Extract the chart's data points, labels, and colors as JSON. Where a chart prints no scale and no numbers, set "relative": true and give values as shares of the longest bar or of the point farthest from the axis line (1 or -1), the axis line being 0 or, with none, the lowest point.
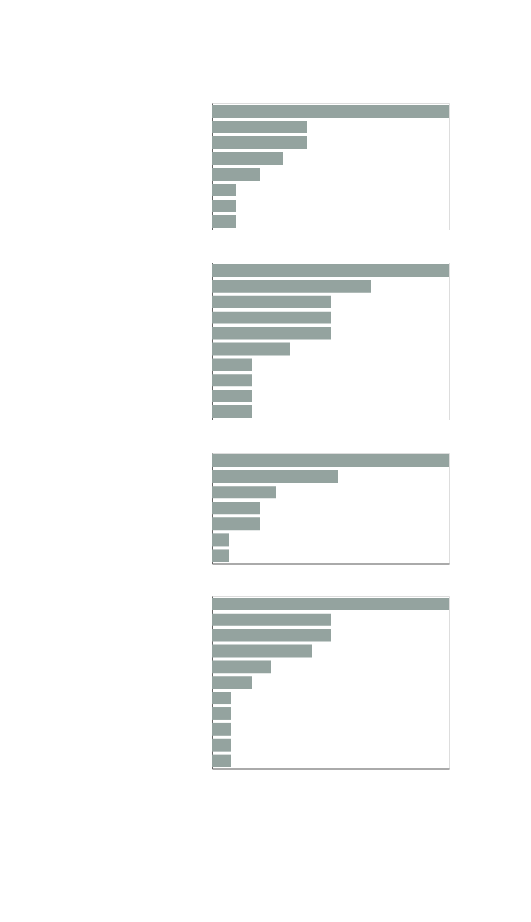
{
  "chart_data": [
    {
      "type": "bar",
      "orientation": "horizontal",
      "relative": true,
      "color": "#94a39f",
      "categories": [
        null,
        null,
        null,
        null,
        null,
        null,
        null,
        null
      ],
      "values": [
        1,
        0.4,
        0.4,
        0.3,
        0.2,
        0.1,
        0.1,
        0.1
      ]
    },
    {
      "type": "bar",
      "orientation": "horizontal",
      "relative": true,
      "color": "#94a39f",
      "categories": [
        null,
        null,
        null,
        null,
        null,
        null,
        null,
        null,
        null,
        null
      ],
      "values": [
        1,
        0.67,
        0.5,
        0.5,
        0.5,
        0.33,
        0.17,
        0.17,
        0.17,
        0.17
      ]
    },
    {
      "type": "bar",
      "orientation": "horizontal",
      "relative": true,
      "color": "#94a39f",
      "categories": [
        null,
        null,
        null,
        null,
        null,
        null,
        null
      ],
      "values": [
        1,
        0.53,
        0.27,
        0.2,
        0.2,
        0.07,
        0.07
      ]
    },
    {
      "type": "bar",
      "orientation": "horizontal",
      "relative": true,
      "color": "#94a39f",
      "categories": [
        null,
        null,
        null,
        null,
        null,
        null,
        null,
        null,
        null,
        null,
        null
      ],
      "values": [
        1,
        0.5,
        0.5,
        0.42,
        0.25,
        0.17,
        0.08,
        0.08,
        0.08,
        0.08,
        0.08
      ]
    }
  ]
}
